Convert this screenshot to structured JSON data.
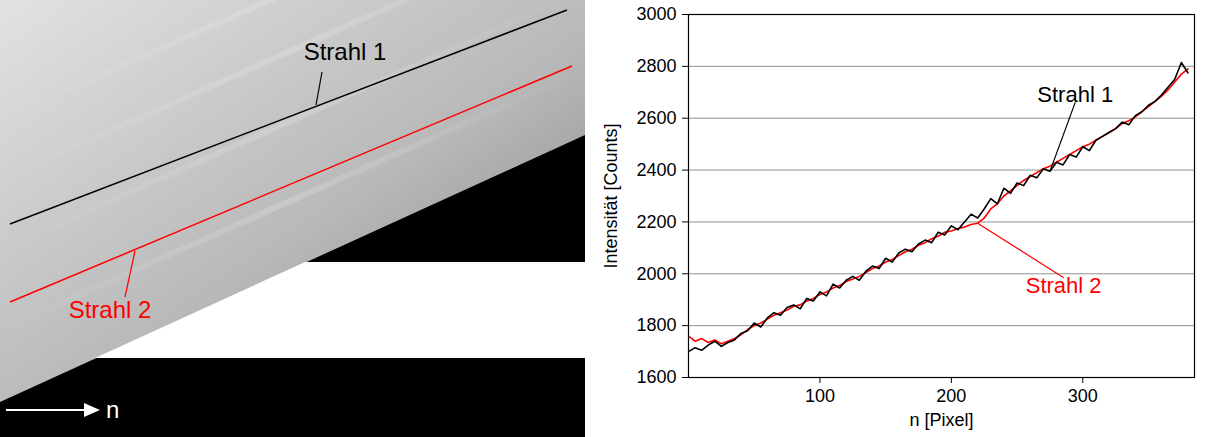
{
  "image": {
    "lines": [
      {
        "name": "Strahl 1",
        "color": "#000000"
      },
      {
        "name": "Strahl 2",
        "color": "#ff0000"
      }
    ],
    "axis_label": "n"
  },
  "chart_data": {
    "type": "line",
    "x_label": "n [Pixel]",
    "y_label": "Intensität [Counts]",
    "x": [
      0,
      5,
      10,
      15,
      20,
      25,
      30,
      35,
      40,
      45,
      50,
      55,
      60,
      65,
      70,
      75,
      80,
      85,
      90,
      95,
      100,
      105,
      110,
      115,
      120,
      125,
      130,
      135,
      140,
      145,
      150,
      155,
      160,
      165,
      170,
      175,
      180,
      185,
      190,
      195,
      200,
      205,
      210,
      215,
      220,
      225,
      230,
      235,
      240,
      245,
      250,
      255,
      260,
      265,
      270,
      275,
      280,
      285,
      290,
      295,
      300,
      305,
      310,
      315,
      320,
      325,
      330,
      335,
      340,
      345,
      350,
      355,
      360,
      365,
      370,
      375,
      380
    ],
    "series": [
      {
        "name": "Strahl 2",
        "color": "#ff0000",
        "values": [
          1760,
          1740,
          1750,
          1735,
          1745,
          1730,
          1740,
          1750,
          1765,
          1785,
          1800,
          1810,
          1825,
          1840,
          1850,
          1860,
          1875,
          1880,
          1895,
          1905,
          1920,
          1930,
          1945,
          1955,
          1970,
          1980,
          1990,
          2005,
          2020,
          2030,
          2045,
          2055,
          2070,
          2085,
          2095,
          2110,
          2120,
          2135,
          2145,
          2160,
          2165,
          2175,
          2180,
          2190,
          2195,
          2215,
          2250,
          2270,
          2300,
          2320,
          2340,
          2360,
          2375,
          2390,
          2405,
          2415,
          2430,
          2445,
          2460,
          2475,
          2490,
          2500,
          2515,
          2530,
          2545,
          2560,
          2580,
          2590,
          2605,
          2625,
          2645,
          2665,
          2685,
          2710,
          2740,
          2770,
          2790
        ]
      },
      {
        "name": "Strahl 1",
        "color": "#000000",
        "values": [
          1700,
          1715,
          1705,
          1725,
          1740,
          1720,
          1735,
          1745,
          1770,
          1780,
          1810,
          1795,
          1830,
          1850,
          1840,
          1870,
          1880,
          1865,
          1905,
          1895,
          1930,
          1915,
          1960,
          1945,
          1975,
          1990,
          1975,
          2010,
          2030,
          2020,
          2060,
          2045,
          2080,
          2095,
          2085,
          2115,
          2130,
          2120,
          2160,
          2150,
          2185,
          2170,
          2200,
          2230,
          2215,
          2250,
          2290,
          2270,
          2330,
          2310,
          2350,
          2340,
          2380,
          2370,
          2405,
          2395,
          2430,
          2420,
          2460,
          2450,
          2490,
          2475,
          2515,
          2530,
          2545,
          2560,
          2585,
          2575,
          2610,
          2625,
          2650,
          2665,
          2690,
          2720,
          2750,
          2815,
          2775
        ]
      }
    ],
    "xlim": [
      0,
      385
    ],
    "xticks": [
      100,
      200,
      300
    ],
    "ylim": [
      1600,
      3000
    ],
    "yticks": [
      1600,
      1800,
      2000,
      2200,
      2400,
      2600,
      2800,
      3000
    ],
    "grid": true
  }
}
